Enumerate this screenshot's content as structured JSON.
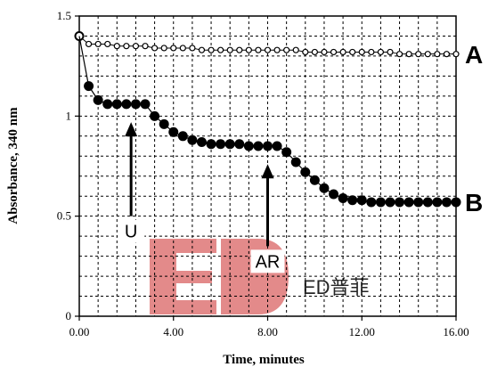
{
  "chart_data": {
    "type": "scatter",
    "xlabel": "Time, minutes",
    "ylabel": "Absorbance, 340 nm",
    "xlim": [
      0,
      16
    ],
    "ylim": [
      0,
      1.5
    ],
    "x_ticks": [
      0,
      4,
      8,
      12,
      16
    ],
    "x_tick_labels": [
      "0.00",
      "4.00",
      "8.00",
      "12.00",
      "16.00"
    ],
    "y_ticks": [
      0,
      0.5,
      1,
      1.5
    ],
    "y_tick_labels": [
      "0",
      "0.5",
      "1",
      "1.5"
    ],
    "grid": true,
    "grid_style": "dashed",
    "series": [
      {
        "name": "A",
        "marker": "open-circle",
        "x": [
          0,
          0.4,
          0.8,
          1.2,
          1.6,
          2.0,
          2.4,
          2.8,
          3.2,
          3.6,
          4.0,
          4.4,
          4.8,
          5.2,
          5.6,
          6.0,
          6.4,
          6.8,
          7.2,
          7.6,
          8.0,
          8.4,
          8.8,
          9.2,
          9.6,
          10.0,
          10.4,
          10.8,
          11.2,
          11.6,
          12.0,
          12.4,
          12.8,
          13.2,
          13.6,
          14.0,
          14.4,
          14.8,
          15.2,
          15.6,
          16.0
        ],
        "y": [
          1.4,
          1.36,
          1.36,
          1.36,
          1.35,
          1.35,
          1.35,
          1.35,
          1.34,
          1.34,
          1.34,
          1.34,
          1.34,
          1.33,
          1.33,
          1.33,
          1.33,
          1.33,
          1.33,
          1.33,
          1.33,
          1.33,
          1.33,
          1.33,
          1.32,
          1.32,
          1.32,
          1.32,
          1.32,
          1.32,
          1.32,
          1.32,
          1.32,
          1.32,
          1.31,
          1.31,
          1.31,
          1.31,
          1.31,
          1.31,
          1.31
        ]
      },
      {
        "name": "B",
        "marker": "filled-circle",
        "x": [
          0,
          0.4,
          0.8,
          1.2,
          1.6,
          2.0,
          2.4,
          2.8,
          3.2,
          3.6,
          4.0,
          4.4,
          4.8,
          5.2,
          5.6,
          6.0,
          6.4,
          6.8,
          7.2,
          7.6,
          8.0,
          8.4,
          8.8,
          9.2,
          9.6,
          10.0,
          10.4,
          10.8,
          11.2,
          11.6,
          12.0,
          12.4,
          12.8,
          13.2,
          13.6,
          14.0,
          14.4,
          14.8,
          15.2,
          15.6,
          16.0
        ],
        "y": [
          1.4,
          1.15,
          1.08,
          1.06,
          1.06,
          1.06,
          1.06,
          1.06,
          1.0,
          0.96,
          0.92,
          0.9,
          0.88,
          0.87,
          0.86,
          0.86,
          0.86,
          0.86,
          0.85,
          0.85,
          0.85,
          0.85,
          0.82,
          0.77,
          0.72,
          0.68,
          0.64,
          0.61,
          0.59,
          0.58,
          0.58,
          0.57,
          0.57,
          0.57,
          0.57,
          0.57,
          0.57,
          0.57,
          0.57,
          0.57,
          0.57
        ]
      }
    ],
    "annotations": [
      {
        "text": "U",
        "x": 2.2,
        "arrow_from_y": 0.5,
        "arrow_to_y": 0.97
      },
      {
        "text": "AR",
        "x": 8.0,
        "arrow_from_y": 0.35,
        "arrow_to_y": 0.76
      }
    ],
    "series_labels": [
      "A",
      "B"
    ],
    "watermark_text": "ED普菲",
    "colors": {
      "axis": "#000000",
      "grid": "#000000",
      "marker_open_fill": "#ffffff",
      "marker_filled": "#000000",
      "watermark": "#e38a8a"
    }
  }
}
